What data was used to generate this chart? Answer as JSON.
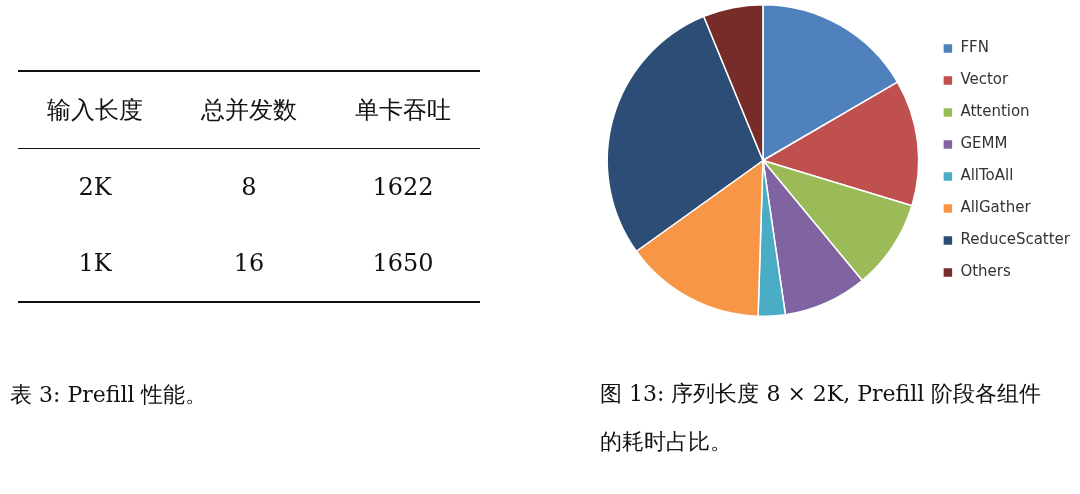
{
  "chart_data": [
    {
      "type": "other",
      "title": "表 3: Prefill 性能。",
      "annotations": [
        "输入长度",
        "总并发数",
        "单卡吞吐",
        "2K",
        "8",
        "1622",
        "1K",
        "16",
        "1650"
      ]
    },
    {
      "type": "pie",
      "title": "图 13: 序列长度 8 × 2K, Prefill 阶段各组件的耗时占比。",
      "legend": "right",
      "categories": [
        "FFN",
        "Vector",
        "Attention",
        "GEMM",
        "AllToAll",
        "AllGather",
        "ReduceScatter",
        "Others"
      ],
      "values": [
        16.6,
        13.1,
        9.3,
        8.7,
        2.8,
        14.6,
        28.7,
        6.2
      ],
      "colors": [
        "#4f81bd",
        "#c0504d",
        "#9bbb59",
        "#8064a2",
        "#4bacc6",
        "#f79646",
        "#2c4d75",
        "#772c2a"
      ]
    }
  ]
}
